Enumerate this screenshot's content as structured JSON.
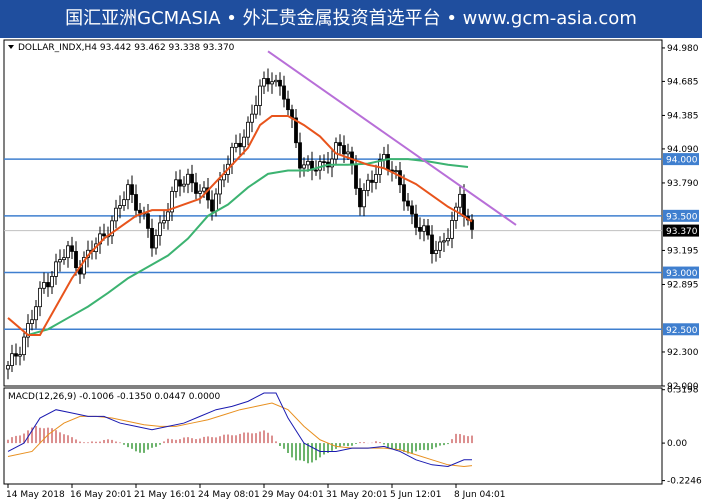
{
  "banner": {
    "text": "国汇亚洲GCMASIA • 外汇贵金属投资首选平台 • www.gcm-asia.com"
  },
  "colors": {
    "background": "#ffffff",
    "banner": "#1f4e9e",
    "candle_up": "#000000",
    "candle_down": "#000000",
    "ma_fast": "#e8541c",
    "ma_slow": "#3cb371",
    "trendline": "#b86fd8",
    "level_line": "#3f7fcf",
    "macd_hist_up": "#d06a6a",
    "macd_hist_down": "#3c9a3c",
    "macd_main": "#1a1ab0",
    "macd_signal": "#e89020",
    "price_label_bg": "#000000"
  },
  "chart_data": [
    {
      "type": "line",
      "title": "DOLLAR_INDX,H4  93.442 93.462 93.338 93.370",
      "header": {
        "symbol": "DOLLAR_INDX,H4",
        "open": 93.442,
        "high": 93.462,
        "low": 93.338,
        "close": 93.37
      },
      "ylim": [
        92.0,
        95.05
      ],
      "y_ticks": [
        "94.980",
        "94.685",
        "94.385",
        "94.090",
        "93.790",
        "93.195",
        "92.895",
        "92.300",
        "92.000"
      ],
      "x_ticks": [
        "14 May 2018",
        "16 May 20:01",
        "21 May 16:01",
        "24 May 08:01",
        "29 May 04:01",
        "31 May 20:01",
        "5 Jun 12:01",
        "8 Jun 04:01"
      ],
      "x_tick_bars": [
        0,
        16,
        32,
        48,
        64,
        80,
        96,
        112
      ],
      "n_bars": 117,
      "horizontal_levels": [
        {
          "value": 94.0,
          "label": "94.000"
        },
        {
          "value": 93.5,
          "label": "93.500"
        },
        {
          "value": 93.0,
          "label": "93.000"
        },
        {
          "value": 92.5,
          "label": "92.500"
        }
      ],
      "current_price": {
        "value": 93.37,
        "label": "93.370"
      },
      "trendline": {
        "from": {
          "bar": 65,
          "value": 94.95
        },
        "to": {
          "bar": 127,
          "value": 93.42
        }
      },
      "close_path": [
        [
          0,
          92.15
        ],
        [
          3,
          92.35
        ],
        [
          6,
          92.6
        ],
        [
          9,
          92.9
        ],
        [
          12,
          93.05
        ],
        [
          15,
          93.2
        ],
        [
          18,
          93.05
        ],
        [
          21,
          93.2
        ],
        [
          24,
          93.35
        ],
        [
          27,
          93.5
        ],
        [
          30,
          93.75
        ],
        [
          33,
          93.55
        ],
        [
          36,
          93.25
        ],
        [
          39,
          93.5
        ],
        [
          42,
          93.75
        ],
        [
          45,
          93.85
        ],
        [
          48,
          93.7
        ],
        [
          51,
          93.6
        ],
        [
          54,
          93.9
        ],
        [
          57,
          94.1
        ],
        [
          60,
          94.3
        ],
        [
          63,
          94.6
        ],
        [
          66,
          94.75
        ],
        [
          69,
          94.55
        ],
        [
          71,
          94.3
        ],
        [
          73,
          94.0
        ],
        [
          76,
          93.9
        ],
        [
          79,
          93.95
        ],
        [
          82,
          94.1
        ],
        [
          85,
          94.05
        ],
        [
          88,
          93.65
        ],
        [
          91,
          93.8
        ],
        [
          94,
          94.05
        ],
        [
          96,
          93.9
        ],
        [
          98,
          93.75
        ],
        [
          101,
          93.5
        ],
        [
          104,
          93.35
        ],
        [
          106,
          93.2
        ],
        [
          108,
          93.25
        ],
        [
          110,
          93.35
        ],
        [
          112,
          93.5
        ],
        [
          113,
          93.7
        ],
        [
          114,
          93.55
        ],
        [
          116,
          93.37
        ]
      ],
      "series": [
        {
          "name": "",
          "role": "ma_fast",
          "points": [
            [
              0,
              92.6
            ],
            [
              5,
              92.45
            ],
            [
              8,
              92.45
            ],
            [
              12,
              92.7
            ],
            [
              16,
              92.95
            ],
            [
              20,
              93.15
            ],
            [
              24,
              93.3
            ],
            [
              28,
              93.4
            ],
            [
              32,
              93.5
            ],
            [
              36,
              93.55
            ],
            [
              40,
              93.55
            ],
            [
              44,
              93.6
            ],
            [
              48,
              93.65
            ],
            [
              52,
              93.8
            ],
            [
              56,
              93.95
            ],
            [
              60,
              94.1
            ],
            [
              63,
              94.3
            ],
            [
              66,
              94.38
            ],
            [
              70,
              94.38
            ],
            [
              74,
              94.3
            ],
            [
              78,
              94.2
            ],
            [
              82,
              94.05
            ],
            [
              86,
              94.0
            ],
            [
              90,
              93.95
            ],
            [
              94,
              93.92
            ],
            [
              98,
              93.85
            ],
            [
              102,
              93.78
            ],
            [
              106,
              93.68
            ],
            [
              110,
              93.58
            ],
            [
              113,
              93.52
            ],
            [
              116,
              93.45
            ]
          ]
        },
        {
          "name": "",
          "role": "ma_slow",
          "points": [
            [
              5,
              92.45
            ],
            [
              10,
              92.5
            ],
            [
              15,
              92.6
            ],
            [
              20,
              92.7
            ],
            [
              25,
              92.82
            ],
            [
              30,
              92.95
            ],
            [
              35,
              93.05
            ],
            [
              40,
              93.15
            ],
            [
              45,
              93.3
            ],
            [
              50,
              93.5
            ],
            [
              55,
              93.6
            ],
            [
              60,
              93.75
            ],
            [
              65,
              93.87
            ],
            [
              70,
              93.9
            ],
            [
              75,
              93.9
            ],
            [
              80,
              93.95
            ],
            [
              85,
              93.95
            ],
            [
              90,
              93.96
            ],
            [
              95,
              94.0
            ],
            [
              100,
              94.0
            ],
            [
              105,
              93.98
            ],
            [
              110,
              93.95
            ],
            [
              115,
              93.93
            ]
          ]
        }
      ]
    },
    {
      "type": "bar",
      "title": "MACD(12,26,9) -0.1006 -0.1350 0.0447 0.0000",
      "header": "MACD(12,26,9) -0.1006 -0.1350 0.0447 0.0000",
      "ylim": [
        -0.245,
        0.33
      ],
      "y_ticks": [
        {
          "value": 0.3198,
          "label": "0.3198"
        },
        {
          "value": 0.0,
          "label": "0.00"
        },
        {
          "value": -0.2246,
          "label": "-0.2246"
        }
      ],
      "series": [
        {
          "name": "",
          "role": "macd_main",
          "points": [
            [
              0,
              -0.05
            ],
            [
              4,
              0.0
            ],
            [
              8,
              0.15
            ],
            [
              12,
              0.2
            ],
            [
              16,
              0.18
            ],
            [
              20,
              0.16
            ],
            [
              24,
              0.16
            ],
            [
              28,
              0.12
            ],
            [
              32,
              0.1
            ],
            [
              36,
              0.08
            ],
            [
              40,
              0.1
            ],
            [
              44,
              0.12
            ],
            [
              48,
              0.16
            ],
            [
              52,
              0.2
            ],
            [
              56,
              0.22
            ],
            [
              60,
              0.25
            ],
            [
              64,
              0.3
            ],
            [
              67,
              0.3
            ],
            [
              70,
              0.15
            ],
            [
              74,
              0.0
            ],
            [
              78,
              -0.05
            ],
            [
              82,
              -0.05
            ],
            [
              86,
              -0.03
            ],
            [
              90,
              -0.03
            ],
            [
              94,
              -0.02
            ],
            [
              98,
              -0.05
            ],
            [
              102,
              -0.1
            ],
            [
              106,
              -0.13
            ],
            [
              110,
              -0.14
            ],
            [
              114,
              -0.1
            ],
            [
              116,
              -0.1
            ]
          ]
        },
        {
          "name": "",
          "role": "macd_signal",
          "points": [
            [
              0,
              -0.08
            ],
            [
              6,
              -0.05
            ],
            [
              10,
              0.05
            ],
            [
              14,
              0.12
            ],
            [
              18,
              0.16
            ],
            [
              22,
              0.16
            ],
            [
              26,
              0.15
            ],
            [
              30,
              0.13
            ],
            [
              34,
              0.11
            ],
            [
              38,
              0.1
            ],
            [
              42,
              0.1
            ],
            [
              46,
              0.12
            ],
            [
              50,
              0.14
            ],
            [
              54,
              0.17
            ],
            [
              58,
              0.2
            ],
            [
              62,
              0.22
            ],
            [
              66,
              0.24
            ],
            [
              70,
              0.2
            ],
            [
              74,
              0.1
            ],
            [
              78,
              0.02
            ],
            [
              82,
              -0.02
            ],
            [
              86,
              -0.03
            ],
            [
              90,
              -0.03
            ],
            [
              94,
              -0.03
            ],
            [
              98,
              -0.04
            ],
            [
              102,
              -0.07
            ],
            [
              106,
              -0.1
            ],
            [
              110,
              -0.13
            ],
            [
              114,
              -0.14
            ],
            [
              116,
              -0.135
            ]
          ]
        }
      ],
      "histogram_path": [
        [
          0,
          0.02
        ],
        [
          3,
          0.05
        ],
        [
          7,
          0.1
        ],
        [
          10,
          0.09
        ],
        [
          13,
          0.07
        ],
        [
          16,
          0.03
        ],
        [
          20,
          0.0
        ],
        [
          24,
          0.02
        ],
        [
          28,
          0.01
        ],
        [
          30,
          -0.03
        ],
        [
          34,
          -0.06
        ],
        [
          36,
          -0.03
        ],
        [
          40,
          0.02
        ],
        [
          44,
          0.03
        ],
        [
          48,
          0.03
        ],
        [
          52,
          0.04
        ],
        [
          56,
          0.05
        ],
        [
          60,
          0.06
        ],
        [
          64,
          0.07
        ],
        [
          66,
          0.05
        ],
        [
          68,
          -0.02
        ],
        [
          70,
          -0.06
        ],
        [
          72,
          -0.1
        ],
        [
          75,
          -0.12
        ],
        [
          78,
          -0.09
        ],
        [
          81,
          -0.04
        ],
        [
          84,
          -0.02
        ],
        [
          88,
          0.0
        ],
        [
          92,
          0.01
        ],
        [
          95,
          -0.02
        ],
        [
          98,
          -0.05
        ],
        [
          101,
          -0.06
        ],
        [
          104,
          -0.04
        ],
        [
          107,
          -0.03
        ],
        [
          110,
          0.0
        ],
        [
          112,
          0.05
        ],
        [
          114,
          0.05
        ],
        [
          116,
          0.045
        ]
      ]
    }
  ]
}
